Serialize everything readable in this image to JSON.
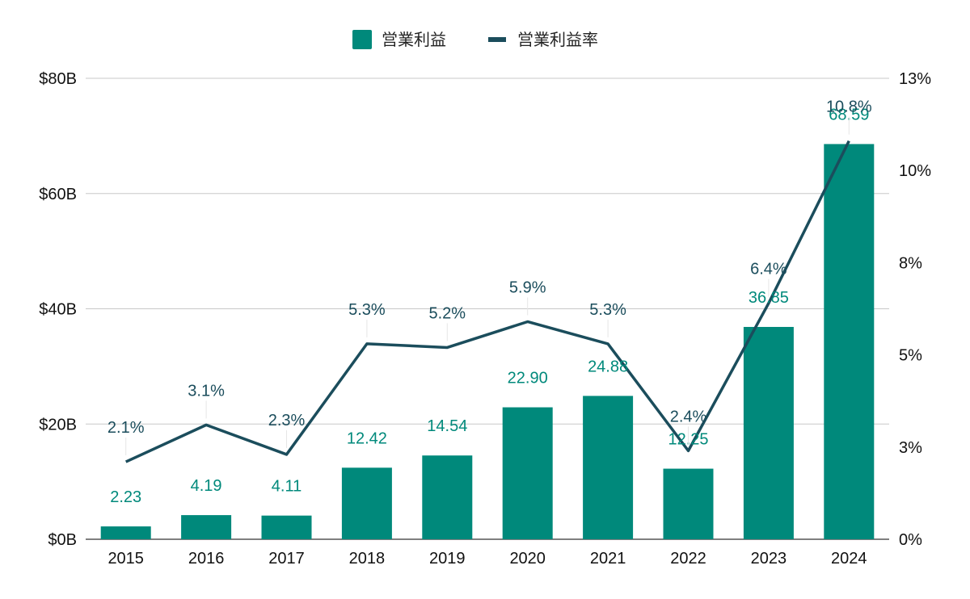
{
  "chart_data": {
    "type": "bar",
    "categories": [
      "2015",
      "2016",
      "2017",
      "2018",
      "2019",
      "2020",
      "2021",
      "2022",
      "2023",
      "2024"
    ],
    "series": [
      {
        "name": "営業利益",
        "type": "bar",
        "axis": "left",
        "unit": "B USD",
        "values": [
          2.23,
          4.19,
          4.11,
          12.42,
          14.54,
          22.9,
          24.88,
          12.25,
          36.85,
          68.59
        ],
        "labels": [
          "2.23",
          "4.19",
          "4.11",
          "12.42",
          "14.54",
          "22.90",
          "24.88",
          "12.25",
          "36.85",
          "68.59"
        ],
        "color": "#00897b"
      },
      {
        "name": "営業利益率",
        "type": "line",
        "axis": "right",
        "unit": "%",
        "values": [
          2.1,
          3.1,
          2.3,
          5.3,
          5.2,
          5.9,
          5.3,
          2.4,
          6.4,
          10.8
        ],
        "labels": [
          "2.1%",
          "3.1%",
          "2.3%",
          "5.3%",
          "5.2%",
          "5.9%",
          "5.3%",
          "2.4%",
          "6.4%",
          "10.8%"
        ],
        "color": "#1b4d5c"
      }
    ],
    "left_axis": {
      "ylim": [
        0,
        80
      ],
      "ticks": [
        0,
        20,
        40,
        60,
        80
      ],
      "tick_labels": [
        "$0B",
        "$20B",
        "$40B",
        "$60B",
        "$80B"
      ]
    },
    "right_axis": {
      "ylim": [
        0,
        12.5
      ],
      "ticks": [
        0,
        2.5,
        5,
        7.5,
        10,
        12.5
      ],
      "tick_labels": [
        "0%",
        "3%",
        "5%",
        "8%",
        "10%",
        "13%"
      ]
    },
    "grid": true,
    "legend_position": "top-center"
  }
}
